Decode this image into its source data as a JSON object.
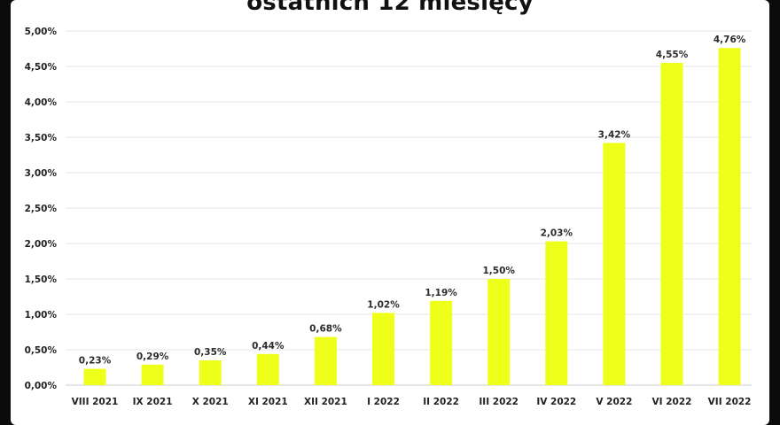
{
  "chart_data": {
    "type": "bar",
    "title": "ostatnich 12 miesięcy",
    "xlabel": "",
    "ylabel": "",
    "ylim": [
      0,
      5
    ],
    "yticks": [
      "0,00%",
      "0,50%",
      "1,00%",
      "1,50%",
      "2,00%",
      "2,50%",
      "3,00%",
      "3,50%",
      "4,00%",
      "4,50%",
      "5,00%"
    ],
    "categories": [
      "VIII 2021",
      "IX 2021",
      "X 2021",
      "XI 2021",
      "XII 2021",
      "I 2022",
      "II 2022",
      "III 2022",
      "IV 2022",
      "V 2022",
      "VI 2022",
      "VII 2022"
    ],
    "values": [
      0.23,
      0.29,
      0.35,
      0.44,
      0.68,
      1.02,
      1.19,
      1.5,
      2.03,
      3.42,
      4.55,
      4.76
    ],
    "value_labels": [
      "0,23%",
      "0,29%",
      "0,35%",
      "0,44%",
      "0,68%",
      "1,02%",
      "1,19%",
      "1,50%",
      "2,03%",
      "3,42%",
      "4,55%",
      "4,76%"
    ],
    "grid": true,
    "legend": "none",
    "bar_color": "#eeff1a",
    "grid_color": "#e6e6e6"
  }
}
